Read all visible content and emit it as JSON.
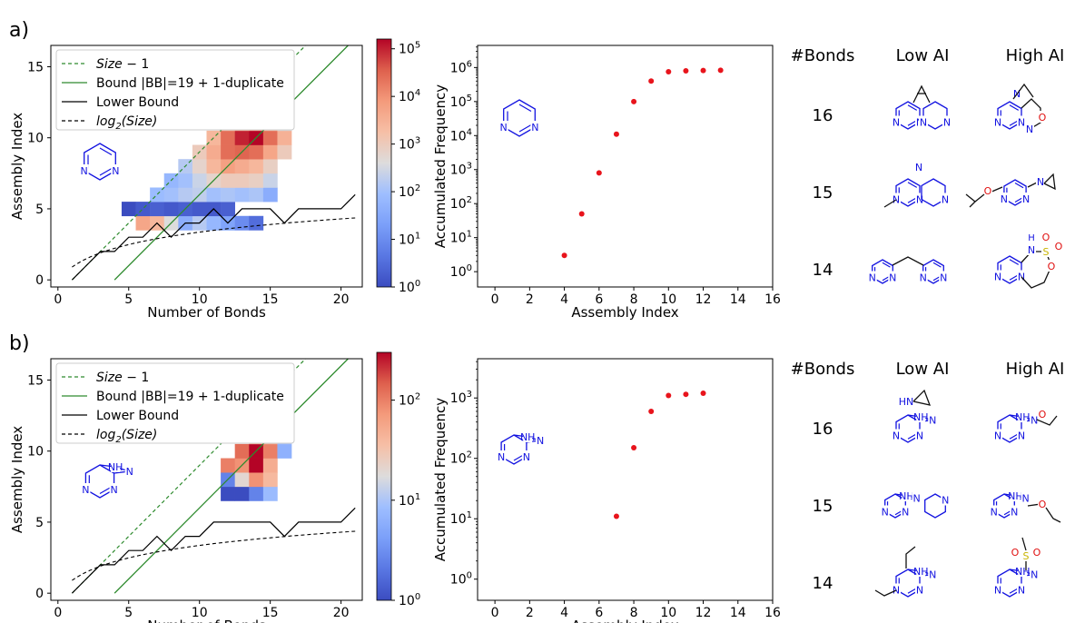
{
  "panels": [
    {
      "label": "a)",
      "heatmap": {
        "type": "heatmap",
        "xlabel": "Number of Bonds",
        "ylabel": "Assembly Index",
        "xlim": [
          -0.5,
          21.5
        ],
        "ylim": [
          -0.5,
          16.5
        ],
        "xticks": [
          0,
          5,
          10,
          15,
          20
        ],
        "yticks": [
          0,
          5,
          10,
          15
        ],
        "colorbar": {
          "scale": "log",
          "min": 1,
          "max": 160000,
          "ticks": [
            "10^0",
            "10^1",
            "10^2",
            "10^3",
            "10^4",
            "10^5"
          ]
        },
        "legend_position": "top-left",
        "legend": [
          {
            "label": "Size − 1",
            "style": "dashed",
            "color": "#2e8b2e",
            "italic_word": "Size",
            "suffix": " − 1"
          },
          {
            "label": "Bound |BB|=19 + 1-duplicate",
            "style": "solid",
            "color": "#2e8b2e"
          },
          {
            "label": "Lower Bound",
            "style": "solid",
            "color": "#000000"
          },
          {
            "label": "log2(Size)",
            "style": "dashed",
            "color": "#000000",
            "math": "log2"
          }
        ],
        "bound_slope": 1,
        "bound_intercept": -4,
        "lower_bound": [
          [
            1,
            0
          ],
          [
            2,
            1
          ],
          [
            3,
            2
          ],
          [
            4,
            2
          ],
          [
            5,
            3
          ],
          [
            6,
            3
          ],
          [
            7,
            4
          ],
          [
            8,
            3
          ],
          [
            9,
            4
          ],
          [
            10,
            4
          ],
          [
            11,
            5
          ],
          [
            12,
            4
          ],
          [
            13,
            5
          ],
          [
            14,
            5
          ],
          [
            15,
            5
          ],
          [
            16,
            4
          ],
          [
            17,
            5
          ],
          [
            18,
            5
          ],
          [
            19,
            5
          ],
          [
            20,
            5
          ],
          [
            21,
            6
          ]
        ],
        "cells": [
          [
            6,
            4,
            3.7
          ],
          [
            7,
            4,
            3.4
          ],
          [
            8,
            4,
            2.6
          ],
          [
            9,
            4,
            1.6
          ],
          [
            10,
            4,
            2.2
          ],
          [
            11,
            4,
            1.8
          ],
          [
            12,
            4,
            1.4
          ],
          [
            13,
            4,
            1.0
          ],
          [
            14,
            4,
            0.5
          ],
          [
            5,
            5,
            0.0
          ],
          [
            6,
            5,
            0.2
          ],
          [
            7,
            5,
            0.3
          ],
          [
            8,
            5,
            0.2
          ],
          [
            9,
            5,
            0.3
          ],
          [
            10,
            5,
            0.2
          ],
          [
            11,
            5,
            0.2
          ],
          [
            12,
            5,
            0.3
          ],
          [
            7,
            6,
            1.9
          ],
          [
            8,
            6,
            2.0
          ],
          [
            9,
            6,
            2.2
          ],
          [
            10,
            6,
            2.3
          ],
          [
            11,
            6,
            2.0
          ],
          [
            12,
            6,
            2.1
          ],
          [
            13,
            6,
            2.0
          ],
          [
            14,
            6,
            2.1
          ],
          [
            15,
            6,
            1.6
          ],
          [
            8,
            7,
            1.8
          ],
          [
            9,
            7,
            2.0
          ],
          [
            10,
            7,
            2.4
          ],
          [
            11,
            7,
            2.8
          ],
          [
            12,
            7,
            3.0
          ],
          [
            13,
            7,
            3.0
          ],
          [
            14,
            7,
            2.9
          ],
          [
            15,
            7,
            2.4
          ],
          [
            9,
            8,
            2.2
          ],
          [
            10,
            8,
            2.8
          ],
          [
            11,
            8,
            3.4
          ],
          [
            12,
            8,
            3.8
          ],
          [
            13,
            8,
            3.6
          ],
          [
            14,
            8,
            3.4
          ],
          [
            15,
            8,
            2.9
          ],
          [
            10,
            9,
            3.0
          ],
          [
            11,
            9,
            3.6
          ],
          [
            12,
            9,
            4.4
          ],
          [
            13,
            9,
            4.5
          ],
          [
            14,
            9,
            4.4
          ],
          [
            15,
            9,
            3.7
          ],
          [
            16,
            9,
            3.0
          ],
          [
            11,
            10,
            3.4
          ],
          [
            12,
            10,
            4.4
          ],
          [
            13,
            10,
            5.0
          ],
          [
            14,
            10,
            5.2
          ],
          [
            15,
            10,
            4.4
          ],
          [
            16,
            10,
            3.5
          ],
          [
            12,
            11,
            3.2
          ],
          [
            13,
            11,
            3.6
          ],
          [
            14,
            11,
            3.8
          ],
          [
            15,
            11,
            3.2
          ],
          [
            16,
            11,
            2.6
          ],
          [
            13,
            12,
            2.8
          ],
          [
            14,
            12,
            2.9
          ],
          [
            15,
            12,
            2.5
          ],
          [
            16,
            12,
            2.2
          ]
        ],
        "molecule": "pyrimidine"
      },
      "scatter": {
        "type": "scatter",
        "xlabel": "Assembly Index",
        "ylabel": "Accumulated Frequency",
        "xlim": [
          -1,
          16
        ],
        "xticks": [
          0,
          2,
          4,
          6,
          8,
          10,
          12,
          14,
          16
        ],
        "yscale": "log",
        "ylog_range": [
          -0.45,
          6.65
        ],
        "yticks": [
          "10^0",
          "10^1",
          "10^2",
          "10^3",
          "10^4",
          "10^5",
          "10^6"
        ],
        "color": "#e8141c",
        "points": [
          [
            4,
            3
          ],
          [
            5,
            50
          ],
          [
            6,
            800
          ],
          [
            7,
            11000
          ],
          [
            8,
            100000
          ],
          [
            9,
            400000
          ],
          [
            10,
            750000
          ],
          [
            11,
            800000
          ],
          [
            12,
            820000
          ],
          [
            13,
            830000
          ]
        ],
        "molecule": "pyrimidine"
      },
      "table": {
        "headers": [
          "#Bonds",
          "Low AI",
          "High AI"
        ],
        "rows": [
          {
            "bonds": "16",
            "low": "tricyclic-fused",
            "high": "aziridine-oxazine"
          },
          {
            "bonds": "15",
            "low": "methyl-pyrrolo",
            "high": "cyclopropoxy-pyrimidine"
          },
          {
            "bonds": "14",
            "low": "bis-pyrimidinyl-methane",
            "high": "sulfonyl-oxazepine"
          }
        ]
      }
    },
    {
      "label": "b)",
      "heatmap": {
        "type": "heatmap",
        "xlabel": "Number of Bonds",
        "ylabel": "Assembly Index",
        "xlim": [
          -0.5,
          21.5
        ],
        "ylim": [
          -0.5,
          16.5
        ],
        "xticks": [
          0,
          5,
          10,
          15,
          20
        ],
        "yticks": [
          0,
          5,
          10,
          15
        ],
        "colorbar": {
          "scale": "log",
          "min": 1,
          "max": 300,
          "ticks": [
            "10^0",
            "10^1",
            "10^2"
          ]
        },
        "legend_position": "top-left",
        "legend": [
          {
            "label": "Size − 1",
            "style": "dashed",
            "color": "#2e8b2e",
            "italic_word": "Size",
            "suffix": " − 1"
          },
          {
            "label": "Bound |BB|=19 + 1-duplicate",
            "style": "solid",
            "color": "#2e8b2e"
          },
          {
            "label": "Lower Bound",
            "style": "solid",
            "color": "#000000"
          },
          {
            "label": "log2(Size)",
            "style": "dashed",
            "color": "#000000",
            "math": "log2"
          }
        ],
        "bound_slope": 1,
        "bound_intercept": -4,
        "lower_bound": [
          [
            1,
            0
          ],
          [
            2,
            1
          ],
          [
            3,
            2
          ],
          [
            4,
            2
          ],
          [
            5,
            3
          ],
          [
            6,
            3
          ],
          [
            7,
            4
          ],
          [
            8,
            3
          ],
          [
            9,
            4
          ],
          [
            10,
            4
          ],
          [
            11,
            5
          ],
          [
            12,
            5
          ],
          [
            13,
            5
          ],
          [
            14,
            5
          ],
          [
            15,
            5
          ],
          [
            16,
            4
          ],
          [
            17,
            5
          ],
          [
            18,
            5
          ],
          [
            19,
            5
          ],
          [
            20,
            5
          ],
          [
            21,
            6
          ]
        ],
        "cells": [
          [
            12,
            7,
            0.0
          ],
          [
            13,
            7,
            0.0
          ],
          [
            14,
            7,
            0.4
          ],
          [
            15,
            7,
            0.9
          ],
          [
            12,
            8,
            0.4
          ],
          [
            13,
            8,
            1.3
          ],
          [
            14,
            8,
            1.9
          ],
          [
            15,
            8,
            1.6
          ],
          [
            12,
            9,
            2.0
          ],
          [
            13,
            9,
            1.9
          ],
          [
            14,
            9,
            2.5
          ],
          [
            15,
            9,
            1.7
          ],
          [
            13,
            10,
            2.1
          ],
          [
            14,
            10,
            2.5
          ],
          [
            15,
            10,
            2.0
          ],
          [
            16,
            10,
            0.8
          ],
          [
            14,
            11,
            1.7
          ],
          [
            15,
            11,
            1.6
          ],
          [
            16,
            11,
            1.0
          ],
          [
            15,
            12,
            1.3
          ],
          [
            16,
            12,
            1.0
          ]
        ],
        "molecule": "purine"
      },
      "scatter": {
        "type": "scatter",
        "xlabel": "Assembly Index",
        "ylabel": "Accumulated Frequency",
        "xlim": [
          -1,
          16
        ],
        "xticks": [
          0,
          2,
          4,
          6,
          8,
          10,
          12,
          14,
          16
        ],
        "yscale": "log",
        "ylog_range": [
          -0.35,
          3.65
        ],
        "yticks": [
          "10^0",
          "10^1",
          "10^2",
          "10^3"
        ],
        "color": "#e8141c",
        "points": [
          [
            7,
            11
          ],
          [
            8,
            150
          ],
          [
            9,
            600
          ],
          [
            10,
            1100
          ],
          [
            11,
            1150
          ],
          [
            12,
            1200
          ]
        ],
        "molecule": "purine"
      },
      "table": {
        "headers": [
          "#Bonds",
          "Low AI",
          "High AI"
        ],
        "rows": [
          {
            "bonds": "16",
            "low": "aziridine-purine",
            "high": "epoxide-purine"
          },
          {
            "bonds": "15",
            "low": "pyrimido-purine",
            "high": "cyclopropoxy-purine"
          },
          {
            "bonds": "14",
            "low": "divinyl-purine",
            "high": "methylsulfonyl-purine"
          }
        ]
      }
    }
  ]
}
